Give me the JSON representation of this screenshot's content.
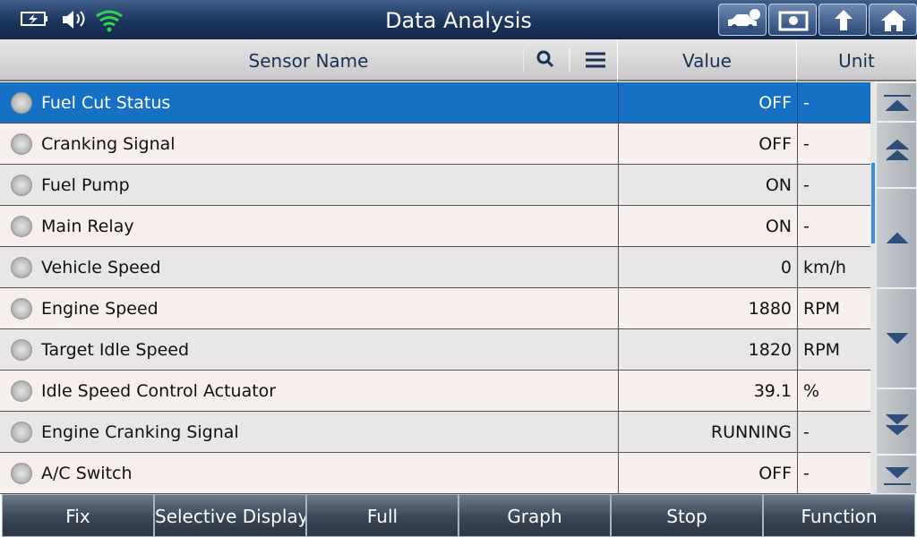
{
  "header": {
    "title": "Data Analysis"
  },
  "table": {
    "columns": [
      "Sensor Name",
      "Value",
      "Unit"
    ],
    "rows": [
      [
        "Fuel Cut Status",
        "OFF",
        "-"
      ],
      [
        "Cranking Signal",
        "OFF",
        "-"
      ],
      [
        "Fuel Pump",
        "ON",
        "-"
      ],
      [
        "Main Relay",
        "ON",
        "-"
      ],
      [
        "Vehicle Speed",
        "0",
        "km/h"
      ],
      [
        "Engine Speed",
        "1880",
        "RPM"
      ],
      [
        "Target Idle Speed",
        "1820",
        "RPM"
      ],
      [
        "Idle Speed Control Actuator",
        "39.1",
        "%"
      ],
      [
        "Engine Cranking Signal",
        "RUNNING",
        "-"
      ],
      [
        "A/C Switch",
        "OFF",
        "-"
      ]
    ]
  },
  "footer": {
    "buttons": [
      "Fix",
      "Selective Display",
      "Full",
      "Graph",
      "Stop",
      "Function"
    ]
  }
}
